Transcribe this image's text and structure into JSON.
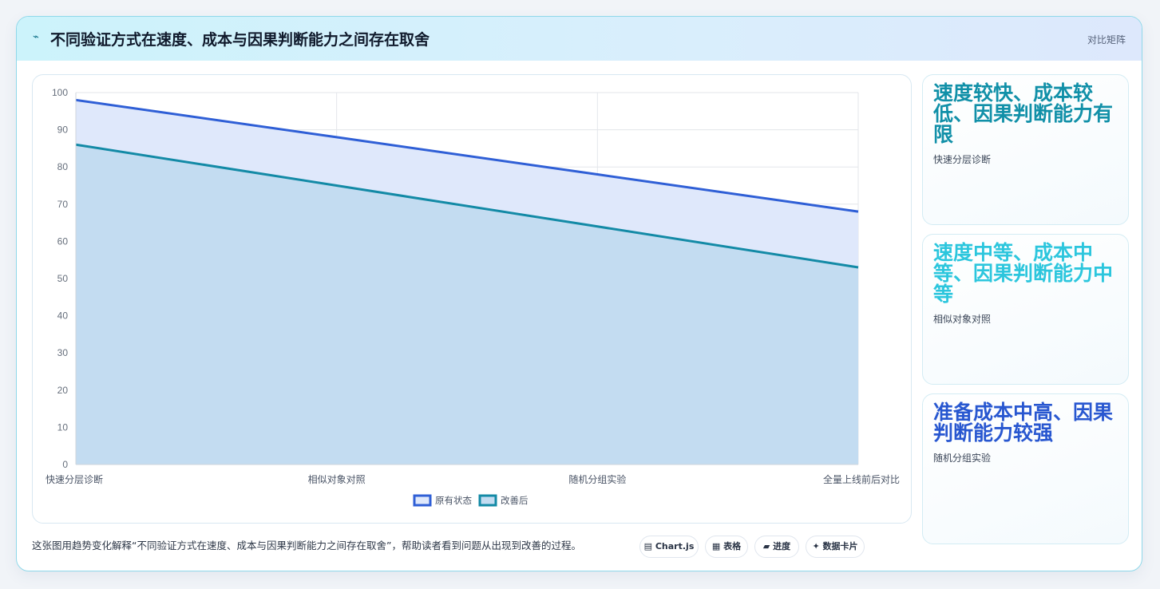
{
  "header": {
    "icon": "⌁",
    "title": "不同验证方式在速度、成本与因果判断能力之间存在取舍",
    "tag": "对比矩阵"
  },
  "colors": {
    "series_original": "#2f5fd6",
    "series_original_fill": "#dfe8fb",
    "series_improved": "#138aa6",
    "series_improved_fill": "#c3dcf1",
    "card1_title": "#1190a8",
    "card2_title": "#2cc6dd",
    "card3_title": "#2857d0"
  },
  "chart_data": {
    "type": "area",
    "categories": [
      "快速分层诊断",
      "相似对象对照",
      "随机分组实验",
      "全量上线前后对比"
    ],
    "series": [
      {
        "name": "原有状态",
        "values": [
          98,
          88,
          78,
          68
        ]
      },
      {
        "name": "改善后",
        "values": [
          86,
          75,
          64,
          53
        ]
      }
    ],
    "ylim": [
      0,
      100
    ],
    "yticks": [
      0,
      10,
      20,
      30,
      40,
      50,
      60,
      70,
      80,
      90,
      100
    ],
    "grid": true,
    "legend": "bottom"
  },
  "side_cards": [
    {
      "title": "速度较快、成本较低、因果判断能力有限",
      "subtitle": "快速分层诊断"
    },
    {
      "title": "速度中等、成本中等、因果判断能力中等",
      "subtitle": "相似对象对照"
    },
    {
      "title": "准备成本中高、因果判断能力较强",
      "subtitle": "随机分组实验"
    }
  ],
  "footer": {
    "text": "这张图用趋势变化解释“不同验证方式在速度、成本与因果判断能力之间存在取舍”，帮助读者看到问题从出现到改善的过程。",
    "pills": [
      {
        "icon": "▤",
        "label": "Chart.js"
      },
      {
        "icon": "▦",
        "label": "表格"
      },
      {
        "icon": "▰",
        "label": "进度"
      },
      {
        "icon": "✦",
        "label": "数据卡片"
      }
    ]
  }
}
